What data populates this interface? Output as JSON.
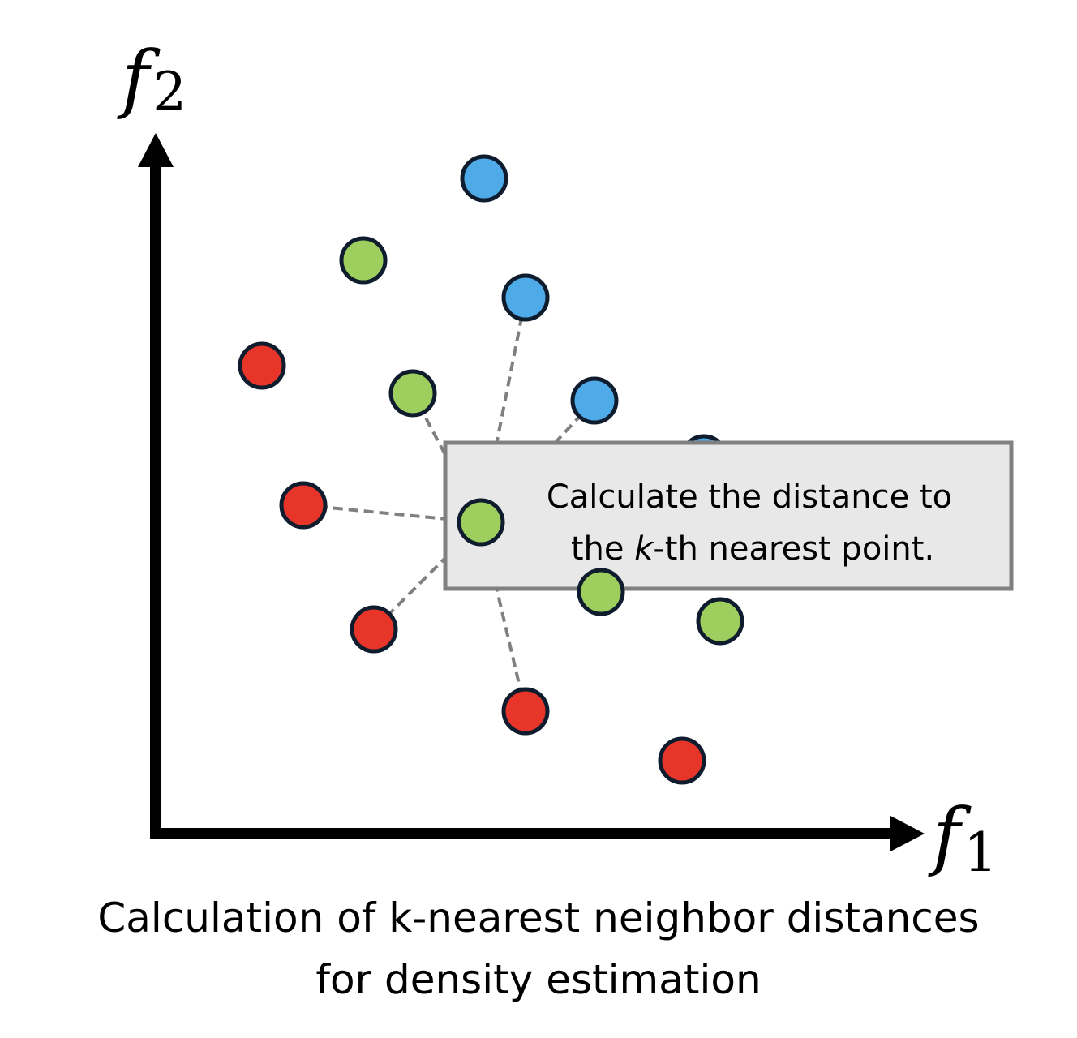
{
  "axes": {
    "x_label": "f",
    "x_subscript": "1",
    "y_label": "f",
    "y_subscript": "2"
  },
  "callout": {
    "line1": "Calculate the distance to",
    "line2_pre": "the ",
    "line2_k": "k",
    "line2_post": "-th nearest point."
  },
  "caption": {
    "line1": "Calculation of k-nearest neighbor distances",
    "line2": "for density estimation"
  },
  "colors": {
    "red": "#e8352a",
    "green": "#9dce5e",
    "blue": "#4faae8",
    "outline": "#0e1c2e",
    "axis": "#000000",
    "dashed_line": "#808080",
    "callout_fill": "#e8e8e8",
    "callout_border": "#808080"
  }
}
